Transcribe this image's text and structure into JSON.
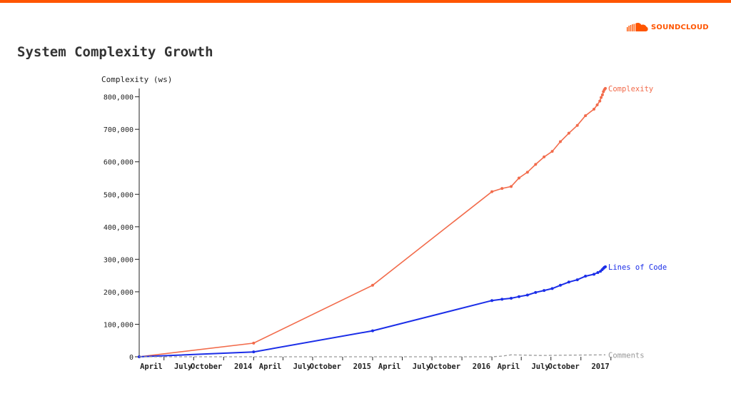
{
  "brand": {
    "name": "SOUNDCLOUD",
    "color": "#ff5500",
    "logo_icon": "soundcloud-cloud-icon"
  },
  "slide": {
    "title": "System Complexity Growth"
  },
  "chart_data": {
    "type": "line",
    "ylabel": "Complexity (ws)",
    "ylim": [
      0,
      830000
    ],
    "y_ticks": [
      0,
      100000,
      200000,
      300000,
      400000,
      500000,
      600000,
      700000,
      800000
    ],
    "y_tick_labels": [
      "0",
      "100,000",
      "200,000",
      "300,000",
      "400,000",
      "500,000",
      "600,000",
      "700,000",
      "800,000"
    ],
    "xlim": [
      "2014-01-15",
      "2017-12-15"
    ],
    "x_ticks": [
      {
        "date": "2014-04-01",
        "label": "April"
      },
      {
        "date": "2014-07-01",
        "label": "July"
      },
      {
        "date": "2014-10-01",
        "label": "October"
      },
      {
        "date": "2015-01-01",
        "label": "2014"
      },
      {
        "date": "2015-04-01",
        "label": "April"
      },
      {
        "date": "2015-07-01",
        "label": "July"
      },
      {
        "date": "2015-10-01",
        "label": "October"
      },
      {
        "date": "2016-01-01",
        "label": "2015"
      },
      {
        "date": "2016-04-01",
        "label": "April"
      },
      {
        "date": "2016-07-01",
        "label": "July"
      },
      {
        "date": "2016-10-01",
        "label": "October"
      },
      {
        "date": "2017-01-01",
        "label": "2016"
      },
      {
        "date": "2017-04-01",
        "label": "April"
      },
      {
        "date": "2017-07-01",
        "label": "July"
      },
      {
        "date": "2017-10-01",
        "label": "October"
      },
      {
        "date": "2018-01-01",
        "label": "2017"
      }
    ],
    "grid": false,
    "legend": "end-of-line labels",
    "series": [
      {
        "name": "Complexity",
        "color": "#f26b4b",
        "markers": true,
        "points": [
          [
            "2014-01-15",
            0
          ],
          [
            "2015-01-01",
            42000
          ],
          [
            "2016-01-01",
            220000
          ],
          [
            "2017-01-01",
            508000
          ],
          [
            "2017-02-01",
            518000
          ],
          [
            "2017-03-01",
            524000
          ],
          [
            "2017-03-25",
            550000
          ],
          [
            "2017-04-20",
            568000
          ],
          [
            "2017-05-15",
            592000
          ],
          [
            "2017-06-10",
            615000
          ],
          [
            "2017-07-05",
            632000
          ],
          [
            "2017-07-30",
            662000
          ],
          [
            "2017-08-25",
            688000
          ],
          [
            "2017-09-20",
            712000
          ],
          [
            "2017-10-15",
            742000
          ],
          [
            "2017-11-10",
            762000
          ],
          [
            "2017-11-20",
            775000
          ],
          [
            "2017-11-28",
            787000
          ],
          [
            "2017-12-02",
            798000
          ],
          [
            "2017-12-06",
            806000
          ],
          [
            "2017-12-09",
            816000
          ],
          [
            "2017-12-12",
            822000
          ],
          [
            "2017-12-15",
            826000
          ]
        ]
      },
      {
        "name": "Lines of Code",
        "color": "#1b2ee8",
        "markers": true,
        "points": [
          [
            "2014-01-15",
            0
          ],
          [
            "2015-01-01",
            15000
          ],
          [
            "2016-01-01",
            80000
          ],
          [
            "2017-01-01",
            173000
          ],
          [
            "2017-02-01",
            177000
          ],
          [
            "2017-03-01",
            180000
          ],
          [
            "2017-03-25",
            185000
          ],
          [
            "2017-04-20",
            190000
          ],
          [
            "2017-05-15",
            198000
          ],
          [
            "2017-06-10",
            204000
          ],
          [
            "2017-07-05",
            210000
          ],
          [
            "2017-07-30",
            220000
          ],
          [
            "2017-08-25",
            230000
          ],
          [
            "2017-09-20",
            237000
          ],
          [
            "2017-10-15",
            248000
          ],
          [
            "2017-11-10",
            254000
          ],
          [
            "2017-11-22",
            259000
          ],
          [
            "2017-11-30",
            263000
          ],
          [
            "2017-12-05",
            268000
          ],
          [
            "2017-12-09",
            272000
          ],
          [
            "2017-12-12",
            275000
          ],
          [
            "2017-12-15",
            277000
          ]
        ]
      },
      {
        "name": "Comments",
        "color": "#999999",
        "markers": false,
        "dashed": true,
        "points": [
          [
            "2014-01-15",
            0
          ],
          [
            "2015-01-01",
            0
          ],
          [
            "2016-01-01",
            0
          ],
          [
            "2017-01-01",
            0
          ],
          [
            "2017-02-01",
            2000
          ],
          [
            "2017-03-01",
            6000
          ],
          [
            "2017-06-01",
            4000
          ],
          [
            "2017-09-01",
            5000
          ],
          [
            "2017-12-15",
            6000
          ]
        ]
      }
    ]
  }
}
